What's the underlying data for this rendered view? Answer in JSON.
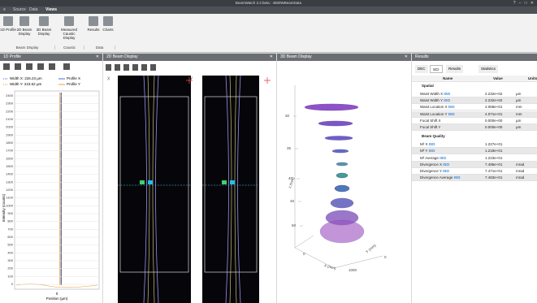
{
  "window": {
    "title": "BeamWatch 3.3 beta : 4500WBeamData"
  },
  "menu": [
    "Source",
    "Data",
    "Views"
  ],
  "ribbon": {
    "buttons": [
      "1D Profile",
      "2D Beam Display",
      "3D Beam Display",
      "Measured Caustic Display",
      "Results",
      "Charts"
    ],
    "groups": [
      "Beam Display",
      "Caustic",
      "Data"
    ]
  },
  "profile": {
    "title": "1D Profile",
    "legend": [
      "Width X: 226.23 µm",
      "Width Y: 223.62 µm",
      "Profile X",
      "Profile Y"
    ],
    "y_label": "Intensity (counts)",
    "yticks": [
      2400,
      2300,
      2200,
      2100,
      2000,
      1900,
      1800,
      1700,
      1600,
      1500,
      1400,
      1300,
      1200,
      1100,
      1000,
      900,
      800,
      700,
      600,
      500,
      400,
      300,
      200,
      100,
      0
    ],
    "x_label": "Position (µm)",
    "x_tick": "0"
  },
  "beam2d": {
    "title": "2D Beam Display",
    "labels": [
      "X",
      "Y"
    ]
  },
  "beam3d": {
    "title": "3D Beam Display",
    "z_ticks": [
      30,
      35,
      40,
      45,
      50
    ],
    "z_label": "z (mm)",
    "x_label": "X (mm)",
    "y_label": "Y (mm)",
    "x_ticks": [
      "0",
      "1000"
    ],
    "y_tick": "0"
  },
  "results": {
    "title": "Results",
    "tabs": [
      "DEC",
      "SCI",
      "Results",
      "Statistics"
    ],
    "columns": [
      "Name",
      "Value",
      "Units"
    ],
    "sections": [
      {
        "name": "Spatial",
        "rows": [
          {
            "name": "Waist Width X",
            "tag": "ISO",
            "value": "2.232e+02",
            "unit": "µm"
          },
          {
            "name": "Waist Width Y",
            "tag": "ISO",
            "value": "2.232e+02",
            "unit": "µm"
          },
          {
            "name": "Waist Location X",
            "tag": "ISO",
            "value": "4.058e+01",
            "unit": "mm"
          },
          {
            "name": "Waist Location Y",
            "tag": "ISO",
            "value": "4.071e+01",
            "unit": "mm"
          },
          {
            "name": "Focal Shift X",
            "value": "0.000e+00",
            "unit": "µm"
          },
          {
            "name": "Focal Shift Y",
            "value": "0.000e+00",
            "unit": "µm"
          }
        ]
      },
      {
        "name": "Beam Quality",
        "rows": [
          {
            "name": "M² X",
            "tag": "ISO",
            "value": "1.227e+01"
          },
          {
            "name": "M² Y",
            "tag": "ISO",
            "value": "1.218e+01"
          },
          {
            "name": "M² Average",
            "tag": "ISO",
            "value": "1.223e+01"
          },
          {
            "name": "Divergence X",
            "tag": "ISO",
            "value": "7.495e+01",
            "unit": "mrad"
          },
          {
            "name": "Divergence Y",
            "tag": "ISO",
            "value": "7.471e+01",
            "unit": "mrad"
          },
          {
            "name": "Divergence Average",
            "tag": "ISO",
            "value": "7.483e+01",
            "unit": "mrad"
          }
        ]
      }
    ]
  }
}
